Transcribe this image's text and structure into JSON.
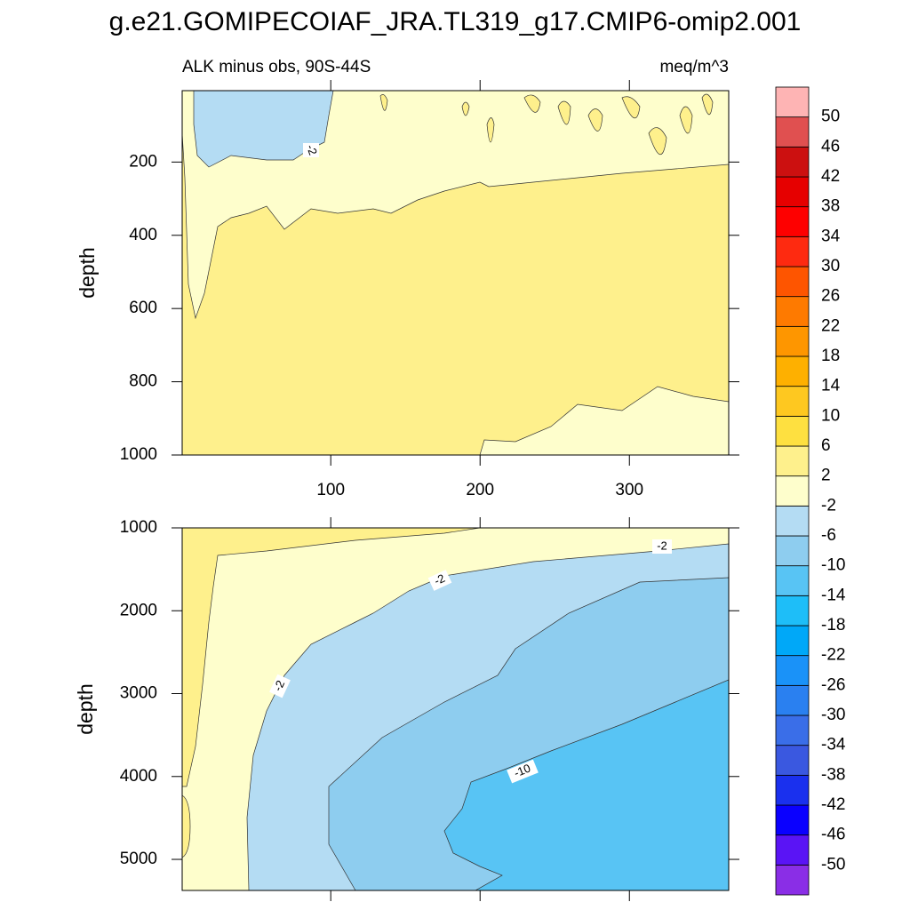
{
  "title": "g.e21.GOMIPECOIAF_JRA.TL319_g17.CMIP6-omip2.001",
  "colorbar": {
    "levels": [
      -50,
      -46,
      -42,
      -38,
      -34,
      -30,
      -26,
      -22,
      -18,
      -14,
      -10,
      -6,
      -2,
      2,
      6,
      10,
      14,
      18,
      22,
      26,
      30,
      34,
      38,
      42,
      46,
      50
    ],
    "colors": [
      "#8a2ee6",
      "#5a14f5",
      "#0a00ff",
      "#1a30ee",
      "#3a58e0",
      "#3a6ee8",
      "#2a80f0",
      "#1a92f8",
      "#00a8f8",
      "#1ebef8",
      "#58c4f4",
      "#8ecdef",
      "#b4dcf3",
      "#fefecc",
      "#fef08c",
      "#fee040",
      "#fec820",
      "#feb000",
      "#fe9600",
      "#fe7a00",
      "#fe5500",
      "#fe2a10",
      "#fe0000",
      "#e60000",
      "#cc1010",
      "#e05050",
      "#feb4b4"
    ]
  },
  "chart_data": [
    {
      "type": "contour",
      "subtitle": "ALK minus obs, 90S-44S",
      "units": "meq/m^3",
      "ylabel": "depth",
      "xlim": [
        0.5,
        366.5
      ],
      "xticks": [
        100,
        200,
        300
      ],
      "ylim": [
        5,
        1000
      ],
      "yticks": [
        200,
        400,
        600,
        800,
        1000
      ],
      "y_reversed": true,
      "contour_labels": [
        -2
      ]
    },
    {
      "type": "contour",
      "ylabel": "depth",
      "xlim": [
        0.5,
        366.5
      ],
      "xticks": [
        100,
        200,
        300
      ],
      "xtick_labels": false,
      "ylim": [
        1000,
        5375
      ],
      "yticks": [
        1000,
        2000,
        3000,
        4000,
        5000
      ],
      "y_reversed": true,
      "contour_labels": [
        -2,
        -2,
        -2,
        -10
      ]
    }
  ]
}
